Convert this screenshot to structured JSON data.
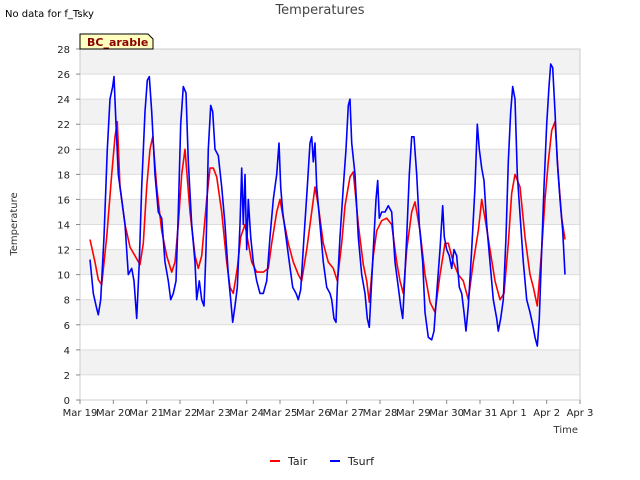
{
  "chart_data": {
    "type": "line",
    "title": "Temperatures",
    "xlabel": "Time",
    "ylabel": "Temperature",
    "no_data_note": "No data for f_Tsky",
    "badge": "BC_arable",
    "ylim": [
      0,
      28
    ],
    "yticks": [
      0,
      2,
      4,
      6,
      8,
      10,
      12,
      14,
      16,
      18,
      20,
      22,
      24,
      26,
      28
    ],
    "xlim": [
      0,
      15
    ],
    "xticks": [
      {
        "pos": 0,
        "label": "Mar 19"
      },
      {
        "pos": 1,
        "label": "Mar 20"
      },
      {
        "pos": 2,
        "label": "Mar 21"
      },
      {
        "pos": 3,
        "label": "Mar 22"
      },
      {
        "pos": 4,
        "label": "Mar 23"
      },
      {
        "pos": 5,
        "label": "Mar 24"
      },
      {
        "pos": 6,
        "label": "Mar 25"
      },
      {
        "pos": 7,
        "label": "Mar 26"
      },
      {
        "pos": 8,
        "label": "Mar 27"
      },
      {
        "pos": 9,
        "label": "Mar 28"
      },
      {
        "pos": 10,
        "label": "Mar 29"
      },
      {
        "pos": 11,
        "label": "Mar 30"
      },
      {
        "pos": 12,
        "label": "Mar 31"
      },
      {
        "pos": 13,
        "label": "Apr 1"
      },
      {
        "pos": 14,
        "label": "Apr 2"
      },
      {
        "pos": 15,
        "label": "Apr 3"
      }
    ],
    "series": [
      {
        "name": "Tair",
        "color": "#ff0000",
        "points": [
          [
            0.3,
            12.8
          ],
          [
            0.45,
            11.0
          ],
          [
            0.55,
            9.6
          ],
          [
            0.65,
            9.2
          ],
          [
            0.8,
            13.0
          ],
          [
            0.95,
            18.0
          ],
          [
            1.05,
            21.0
          ],
          [
            1.12,
            22.2
          ],
          [
            1.2,
            17.0
          ],
          [
            1.35,
            14.0
          ],
          [
            1.5,
            12.2
          ],
          [
            1.65,
            11.5
          ],
          [
            1.8,
            10.8
          ],
          [
            1.9,
            12.5
          ],
          [
            2.0,
            17.0
          ],
          [
            2.1,
            20.0
          ],
          [
            2.18,
            21.0
          ],
          [
            2.3,
            17.0
          ],
          [
            2.45,
            13.5
          ],
          [
            2.6,
            11.5
          ],
          [
            2.75,
            10.2
          ],
          [
            2.85,
            11.0
          ],
          [
            2.95,
            14.0
          ],
          [
            3.05,
            18.0
          ],
          [
            3.15,
            20.0
          ],
          [
            3.3,
            15.0
          ],
          [
            3.45,
            11.5
          ],
          [
            3.55,
            10.5
          ],
          [
            3.65,
            11.5
          ],
          [
            3.8,
            16.0
          ],
          [
            3.9,
            18.5
          ],
          [
            4.0,
            18.5
          ],
          [
            4.1,
            17.8
          ],
          [
            4.25,
            15.0
          ],
          [
            4.4,
            11.0
          ],
          [
            4.5,
            9.0
          ],
          [
            4.6,
            8.5
          ],
          [
            4.72,
            10.5
          ],
          [
            4.82,
            13.0
          ],
          [
            4.95,
            14.0
          ],
          [
            5.05,
            12.5
          ],
          [
            5.15,
            11.0
          ],
          [
            5.3,
            10.2
          ],
          [
            5.5,
            10.2
          ],
          [
            5.65,
            10.5
          ],
          [
            5.75,
            12.5
          ],
          [
            5.9,
            15.0
          ],
          [
            6.0,
            16.0
          ],
          [
            6.1,
            14.5
          ],
          [
            6.25,
            12.5
          ],
          [
            6.4,
            11.0
          ],
          [
            6.55,
            10.0
          ],
          [
            6.65,
            9.5
          ],
          [
            6.8,
            12.0
          ],
          [
            6.95,
            15.0
          ],
          [
            7.05,
            17.0
          ],
          [
            7.15,
            15.5
          ],
          [
            7.3,
            12.5
          ],
          [
            7.45,
            11.0
          ],
          [
            7.6,
            10.5
          ],
          [
            7.72,
            9.5
          ],
          [
            7.85,
            12.5
          ],
          [
            7.95,
            15.5
          ],
          [
            8.1,
            17.8
          ],
          [
            8.2,
            18.2
          ],
          [
            8.35,
            14.0
          ],
          [
            8.5,
            10.8
          ],
          [
            8.6,
            9.5
          ],
          [
            8.68,
            7.8
          ],
          [
            8.8,
            11.5
          ],
          [
            8.9,
            13.5
          ],
          [
            9.05,
            14.3
          ],
          [
            9.2,
            14.5
          ],
          [
            9.35,
            14.0
          ],
          [
            9.5,
            11.0
          ],
          [
            9.6,
            9.5
          ],
          [
            9.7,
            8.5
          ],
          [
            9.8,
            12.0
          ],
          [
            9.95,
            15.0
          ],
          [
            10.05,
            15.8
          ],
          [
            10.2,
            13.5
          ],
          [
            10.35,
            10.0
          ],
          [
            10.5,
            7.8
          ],
          [
            10.65,
            7.0
          ],
          [
            10.8,
            10.0
          ],
          [
            10.95,
            12.5
          ],
          [
            11.05,
            12.5
          ],
          [
            11.2,
            11.0
          ],
          [
            11.35,
            10.0
          ],
          [
            11.5,
            9.5
          ],
          [
            11.65,
            8.0
          ],
          [
            11.8,
            11.0
          ],
          [
            11.95,
            13.5
          ],
          [
            12.05,
            16.0
          ],
          [
            12.15,
            14.5
          ],
          [
            12.3,
            12.0
          ],
          [
            12.45,
            9.5
          ],
          [
            12.6,
            8.0
          ],
          [
            12.72,
            8.5
          ],
          [
            12.85,
            12.5
          ],
          [
            12.95,
            16.5
          ],
          [
            13.05,
            18.0
          ],
          [
            13.2,
            17.0
          ],
          [
            13.35,
            13.0
          ],
          [
            13.5,
            10.0
          ],
          [
            13.6,
            9.0
          ],
          [
            13.72,
            7.5
          ],
          [
            13.85,
            12.0
          ],
          [
            13.95,
            16.0
          ],
          [
            14.05,
            19.0
          ],
          [
            14.15,
            21.5
          ],
          [
            14.25,
            22.2
          ],
          [
            14.35,
            18.0
          ],
          [
            14.45,
            14.5
          ],
          [
            14.55,
            12.8
          ]
        ]
      },
      {
        "name": "Tsurf",
        "color": "#0000ff",
        "points": [
          [
            0.3,
            11.2
          ],
          [
            0.4,
            8.5
          ],
          [
            0.5,
            7.3
          ],
          [
            0.55,
            6.8
          ],
          [
            0.62,
            8.0
          ],
          [
            0.72,
            13.0
          ],
          [
            0.82,
            20.0
          ],
          [
            0.9,
            24.0
          ],
          [
            0.98,
            25.0
          ],
          [
            1.02,
            25.8
          ],
          [
            1.08,
            22.0
          ],
          [
            1.15,
            18.0
          ],
          [
            1.25,
            16.0
          ],
          [
            1.35,
            14.0
          ],
          [
            1.45,
            10.0
          ],
          [
            1.55,
            10.5
          ],
          [
            1.62,
            9.5
          ],
          [
            1.7,
            6.5
          ],
          [
            1.78,
            11.0
          ],
          [
            1.85,
            17.0
          ],
          [
            1.95,
            23.0
          ],
          [
            2.02,
            25.5
          ],
          [
            2.08,
            25.8
          ],
          [
            2.15,
            23.0
          ],
          [
            2.25,
            18.0
          ],
          [
            2.35,
            15.0
          ],
          [
            2.45,
            14.5
          ],
          [
            2.55,
            11.0
          ],
          [
            2.65,
            9.5
          ],
          [
            2.72,
            8.0
          ],
          [
            2.8,
            8.5
          ],
          [
            2.88,
            9.5
          ],
          [
            2.95,
            15.0
          ],
          [
            3.02,
            22.0
          ],
          [
            3.1,
            25.0
          ],
          [
            3.18,
            24.5
          ],
          [
            3.25,
            19.0
          ],
          [
            3.35,
            14.0
          ],
          [
            3.45,
            11.0
          ],
          [
            3.5,
            8.0
          ],
          [
            3.58,
            9.5
          ],
          [
            3.65,
            8.0
          ],
          [
            3.72,
            7.5
          ],
          [
            3.78,
            12.0
          ],
          [
            3.85,
            20.0
          ],
          [
            3.92,
            23.5
          ],
          [
            3.98,
            23.0
          ],
          [
            4.05,
            20.0
          ],
          [
            4.15,
            19.5
          ],
          [
            4.25,
            17.0
          ],
          [
            4.35,
            14.0
          ],
          [
            4.45,
            10.0
          ],
          [
            4.52,
            8.0
          ],
          [
            4.58,
            6.2
          ],
          [
            4.65,
            7.5
          ],
          [
            4.72,
            9.0
          ],
          [
            4.8,
            14.0
          ],
          [
            4.85,
            18.5
          ],
          [
            4.9,
            14.0
          ],
          [
            4.95,
            18.0
          ],
          [
            5.0,
            12.0
          ],
          [
            5.05,
            16.0
          ],
          [
            5.12,
            13.0
          ],
          [
            5.2,
            11.0
          ],
          [
            5.3,
            9.5
          ],
          [
            5.4,
            8.5
          ],
          [
            5.5,
            8.5
          ],
          [
            5.6,
            9.5
          ],
          [
            5.7,
            13.0
          ],
          [
            5.8,
            16.0
          ],
          [
            5.9,
            18.0
          ],
          [
            5.97,
            20.5
          ],
          [
            6.02,
            17.0
          ],
          [
            6.08,
            15.0
          ],
          [
            6.18,
            13.0
          ],
          [
            6.28,
            11.0
          ],
          [
            6.38,
            9.0
          ],
          [
            6.48,
            8.5
          ],
          [
            6.55,
            8.0
          ],
          [
            6.62,
            8.8
          ],
          [
            6.72,
            13.0
          ],
          [
            6.82,
            17.0
          ],
          [
            6.9,
            20.5
          ],
          [
            6.95,
            21.0
          ],
          [
            7.0,
            19.0
          ],
          [
            7.05,
            20.5
          ],
          [
            7.1,
            17.0
          ],
          [
            7.2,
            14.0
          ],
          [
            7.3,
            11.0
          ],
          [
            7.4,
            9.0
          ],
          [
            7.5,
            8.5
          ],
          [
            7.55,
            8.0
          ],
          [
            7.62,
            6.5
          ],
          [
            7.68,
            6.2
          ],
          [
            7.72,
            9.0
          ],
          [
            7.8,
            13.0
          ],
          [
            7.9,
            17.0
          ],
          [
            7.98,
            20.0
          ],
          [
            8.05,
            23.5
          ],
          [
            8.1,
            24.0
          ],
          [
            8.15,
            20.5
          ],
          [
            8.25,
            18.0
          ],
          [
            8.35,
            13.0
          ],
          [
            8.45,
            10.0
          ],
          [
            8.55,
            8.5
          ],
          [
            8.62,
            6.5
          ],
          [
            8.68,
            5.8
          ],
          [
            8.72,
            8.0
          ],
          [
            8.8,
            12.0
          ],
          [
            8.88,
            16.0
          ],
          [
            8.93,
            17.5
          ],
          [
            8.98,
            14.5
          ],
          [
            9.05,
            15.0
          ],
          [
            9.15,
            15.0
          ],
          [
            9.25,
            15.5
          ],
          [
            9.35,
            15.0
          ],
          [
            9.45,
            11.0
          ],
          [
            9.55,
            9.0
          ],
          [
            9.62,
            7.5
          ],
          [
            9.68,
            6.5
          ],
          [
            9.72,
            8.5
          ],
          [
            9.8,
            13.0
          ],
          [
            9.88,
            18.0
          ],
          [
            9.95,
            21.0
          ],
          [
            10.02,
            21.0
          ],
          [
            10.1,
            18.0
          ],
          [
            10.18,
            14.0
          ],
          [
            10.28,
            11.0
          ],
          [
            10.35,
            7.0
          ],
          [
            10.45,
            5.0
          ],
          [
            10.55,
            4.8
          ],
          [
            10.62,
            5.5
          ],
          [
            10.7,
            8.5
          ],
          [
            10.8,
            12.0
          ],
          [
            10.88,
            15.5
          ],
          [
            10.93,
            13.0
          ],
          [
            11.0,
            12.0
          ],
          [
            11.08,
            11.5
          ],
          [
            11.15,
            10.5
          ],
          [
            11.22,
            12.0
          ],
          [
            11.3,
            11.5
          ],
          [
            11.38,
            9.0
          ],
          [
            11.45,
            8.5
          ],
          [
            11.52,
            7.0
          ],
          [
            11.58,
            5.5
          ],
          [
            11.65,
            7.5
          ],
          [
            11.75,
            12.0
          ],
          [
            11.85,
            17.0
          ],
          [
            11.92,
            22.0
          ],
          [
            11.98,
            20.0
          ],
          [
            12.05,
            18.5
          ],
          [
            12.12,
            17.5
          ],
          [
            12.2,
            14.0
          ],
          [
            12.3,
            11.0
          ],
          [
            12.4,
            8.0
          ],
          [
            12.5,
            6.5
          ],
          [
            12.55,
            5.5
          ],
          [
            12.62,
            6.5
          ],
          [
            12.7,
            8.0
          ],
          [
            12.78,
            13.0
          ],
          [
            12.85,
            19.0
          ],
          [
            12.92,
            23.0
          ],
          [
            12.98,
            25.0
          ],
          [
            13.05,
            24.0
          ],
          [
            13.12,
            18.0
          ],
          [
            13.22,
            14.0
          ],
          [
            13.3,
            11.0
          ],
          [
            13.4,
            8.0
          ],
          [
            13.5,
            7.0
          ],
          [
            13.58,
            6.0
          ],
          [
            13.65,
            5.0
          ],
          [
            13.72,
            4.3
          ],
          [
            13.78,
            6.5
          ],
          [
            13.85,
            12.0
          ],
          [
            13.92,
            17.0
          ],
          [
            14.0,
            22.0
          ],
          [
            14.07,
            25.0
          ],
          [
            14.12,
            26.8
          ],
          [
            14.18,
            26.5
          ],
          [
            14.25,
            23.0
          ],
          [
            14.32,
            19.0
          ],
          [
            14.4,
            16.0
          ],
          [
            14.48,
            13.5
          ],
          [
            14.55,
            10.0
          ]
        ]
      }
    ],
    "legend": [
      {
        "name": "Tair",
        "color": "#ff0000"
      },
      {
        "name": "Tsurf",
        "color": "#0000ff"
      }
    ]
  }
}
